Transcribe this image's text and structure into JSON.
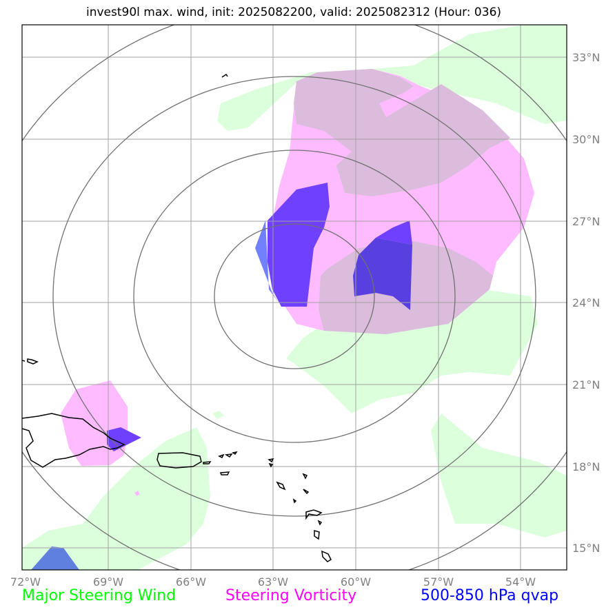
{
  "title": "invest90l max. wind, init: 2025082200, valid: 2025082312 (Hour: 036)",
  "map": {
    "lon_range": [
      -72,
      -52.3
    ],
    "lat_range": [
      14.3,
      34.2
    ],
    "lon_ticks": [
      {
        "value": -72,
        "label": "72°W"
      },
      {
        "value": -69,
        "label": "69°W"
      },
      {
        "value": -66,
        "label": "66°W"
      },
      {
        "value": -63,
        "label": "63°W"
      },
      {
        "value": -60,
        "label": "60°W"
      },
      {
        "value": -57,
        "label": "57°W"
      },
      {
        "value": -54,
        "label": "54°W"
      }
    ],
    "lat_ticks": [
      {
        "value": 33,
        "label": "33°N"
      },
      {
        "value": 30,
        "label": "30°N"
      },
      {
        "value": 27,
        "label": "27°N"
      },
      {
        "value": 24,
        "label": "24°N"
      },
      {
        "value": 21,
        "label": "21°N"
      },
      {
        "value": 18,
        "label": "18°N"
      },
      {
        "value": 15,
        "label": "15°N"
      }
    ],
    "gridlines": true,
    "range_rings_center": [
      -63.1,
      24.1
    ],
    "range_rings_radius_deg_lat": [
      2.7,
      5.4,
      8.1,
      10.8
    ],
    "colors": {
      "steering_wind": "#dcffdc",
      "steering_vorticity": "#ffbbff",
      "overlap": "#dcbcdc",
      "qvap": "#7040ff",
      "qvap_light": "#7080ff",
      "qvap_overlap": "#5840e0",
      "coast": "#000000",
      "grid": "#a0a0a0",
      "rings": "#707070"
    }
  },
  "legend": [
    {
      "label": "Major Steering Wind",
      "color": "#00ff00"
    },
    {
      "label": "Steering Vorticity",
      "color": "#ff00ff"
    },
    {
      "label": "500-850 hPa qvap",
      "color": "#0000ff"
    }
  ]
}
